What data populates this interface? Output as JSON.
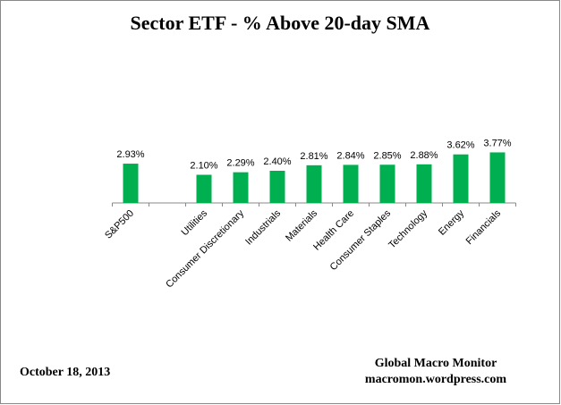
{
  "chart_data": {
    "type": "bar",
    "title": "Sector ETF - % Above 20-day SMA",
    "categories": [
      "S&P500",
      null,
      "Utilities",
      "Consumer Discretionary",
      "Industrials",
      "Materials",
      "Health Care",
      "Consumer Staples",
      "Technology",
      "Energy",
      "Financials"
    ],
    "values": [
      2.93,
      null,
      2.1,
      2.29,
      2.4,
      2.81,
      2.84,
      2.85,
      2.88,
      3.62,
      3.77
    ],
    "value_labels": [
      "2.93%",
      null,
      "2.10%",
      "2.29%",
      "2.40%",
      "2.81%",
      "2.84%",
      "2.85%",
      "2.88%",
      "3.62%",
      "3.77%"
    ],
    "color": "#00b050",
    "ylim": [
      0,
      4
    ],
    "annotations": [
      "October 18, 2013",
      "Global Macro Monitor",
      "macromon.wordpress.com"
    ]
  }
}
